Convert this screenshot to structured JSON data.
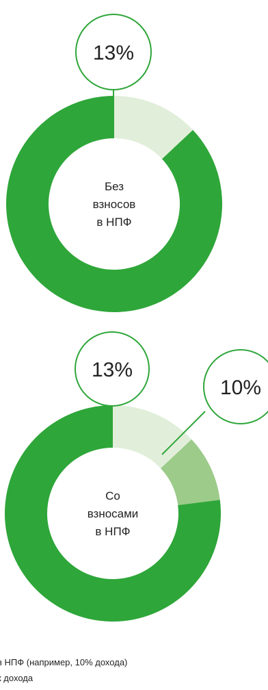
{
  "colors": {
    "dark_green": "#2ea639",
    "mid_green": "#9ccb8a",
    "light_green": "#e1efda",
    "bubble_stroke": "#2ea639",
    "background": "#ffffff"
  },
  "chart_data": [
    {
      "type": "pie",
      "variant": "donut",
      "center_label": [
        "Без",
        "взносов",
        "в НПФ"
      ],
      "slices": [
        {
          "value": 13,
          "color": "#e1efda"
        },
        {
          "value": 87,
          "color": "#2ea639"
        }
      ],
      "callouts": [
        {
          "text": "13%",
          "slice": 0
        }
      ]
    },
    {
      "type": "pie",
      "variant": "donut",
      "center_label": [
        "Со",
        "взносами",
        "в НПФ"
      ],
      "slices": [
        {
          "value": 13,
          "color": "#e1efda"
        },
        {
          "value": 10,
          "color": "#9ccb8a"
        },
        {
          "value": 77,
          "color": "#2ea639"
        }
      ],
      "callouts": [
        {
          "text": "13%",
          "slice": 0
        },
        {
          "text": "10%",
          "slice": 1
        }
      ]
    }
  ],
  "legend": {
    "line1": "в НПФ (например, 10% дохода)",
    "line2": "к дохода"
  }
}
